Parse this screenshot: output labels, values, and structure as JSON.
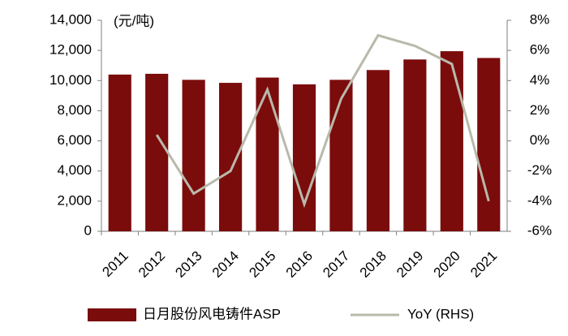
{
  "chart_data": {
    "type": "bar-line",
    "y_label": "(元/吨)",
    "categories": [
      "2011",
      "2012",
      "2013",
      "2014",
      "2015",
      "2016",
      "2017",
      "2018",
      "2019",
      "2020",
      "2021"
    ],
    "series": [
      {
        "name": "日月股份风电铸件ASP",
        "type": "bar",
        "color": "#7b0c0c",
        "values": [
          10400,
          10450,
          10050,
          9850,
          10200,
          9750,
          10050,
          10700,
          11400,
          11950,
          11500
        ]
      },
      {
        "name": "YoY (RHS)",
        "type": "line",
        "axis": "y2",
        "color": "#b9b9ab",
        "values": [
          null,
          0.4,
          -3.5,
          -2.0,
          3.4,
          -4.2,
          2.8,
          7.0,
          6.3,
          5.1,
          -4.0
        ]
      }
    ],
    "ylim": [
      0,
      14000
    ],
    "yticks": [
      0,
      {
        "value": 2000,
        "label": "2,000"
      },
      {
        "value": 4000,
        "label": "4,000"
      },
      {
        "value": 6000,
        "label": "6,000"
      },
      {
        "value": 8000,
        "label": "8,000"
      },
      {
        "value": 10000,
        "label": "10,000"
      },
      {
        "value": 12000,
        "label": "12,000"
      },
      {
        "value": 14000,
        "label": "14,000"
      }
    ],
    "y2lim": [
      -6,
      8
    ],
    "y2ticks": [
      {
        "value": -6,
        "label": "-6%"
      },
      {
        "value": -4,
        "label": "-4%"
      },
      {
        "value": -2,
        "label": "-2%"
      },
      {
        "value": 0,
        "label": "0%"
      },
      {
        "value": 2,
        "label": "2%"
      },
      {
        "value": 4,
        "label": "4%"
      },
      {
        "value": 6,
        "label": "6%"
      },
      {
        "value": 8,
        "label": "8%"
      }
    ],
    "grid": false,
    "legend": "bottom"
  }
}
